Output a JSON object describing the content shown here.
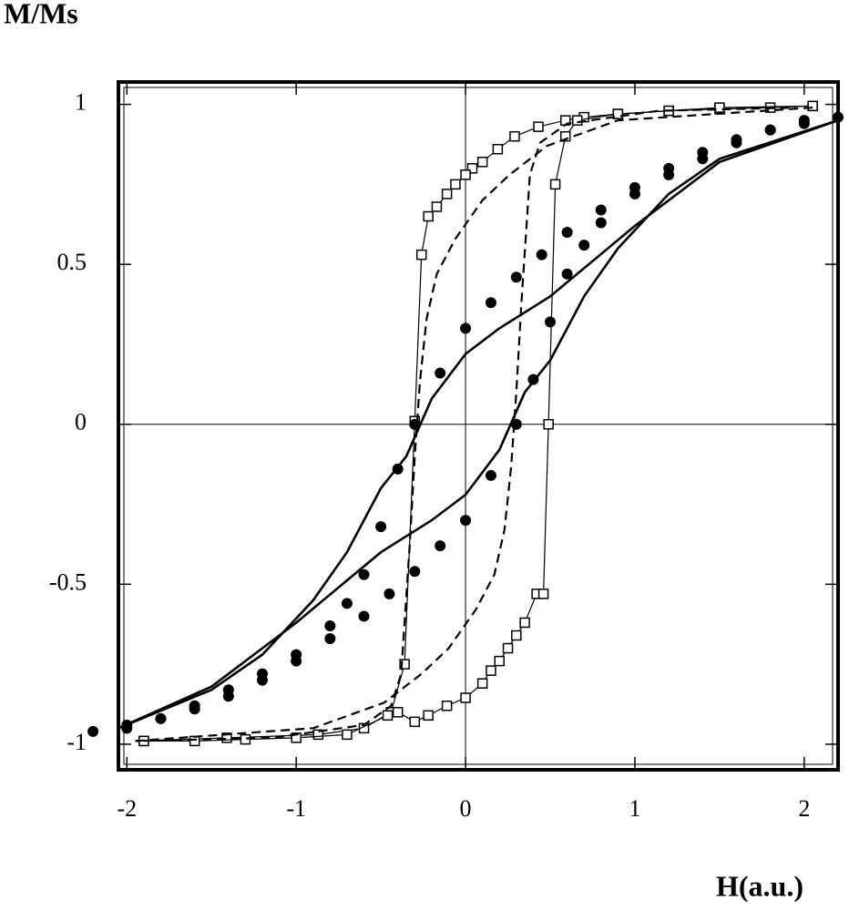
{
  "chart_data": {
    "type": "line",
    "y_label": "M/Ms",
    "x_label": "H(a.u.)",
    "xlim": [
      -2.05,
      2.2
    ],
    "ylim": [
      -1.08,
      1.07
    ],
    "xticks": [
      -2,
      -1,
      0,
      1,
      2
    ],
    "yticks": [
      -1,
      -0.5,
      0,
      0.5,
      1
    ],
    "zero_lines": true,
    "series": [
      {
        "color": "#000000",
        "line": "solid",
        "line_width": 1.2,
        "marker": "square",
        "x": [
          2.05,
          1.8,
          1.5,
          1.2,
          0.9,
          0.7,
          0.59,
          0.43,
          0.29,
          0.19,
          0.1,
          0.04,
          0.0,
          -0.06,
          -0.11,
          -0.17,
          -0.22,
          -0.26,
          -0.3,
          -0.36,
          -0.44,
          -0.6,
          -0.87,
          -1.41,
          -1.9
        ],
        "values": [
          0.995,
          0.99,
          0.985,
          0.98,
          0.97,
          0.96,
          0.95,
          0.93,
          0.9,
          0.86,
          0.82,
          0.8,
          0.78,
          0.75,
          0.72,
          0.68,
          0.65,
          0.53,
          0.01,
          -0.75,
          -0.9,
          -0.95,
          -0.97,
          -0.98,
          -0.99
        ]
      },
      {
        "color": "#000000",
        "line": "solid",
        "line_width": 1.2,
        "marker": "square",
        "x": [
          -1.9,
          -1.6,
          -1.3,
          -1.0,
          -0.7,
          -0.46,
          -0.4,
          -0.3,
          -0.22,
          -0.11,
          0.0,
          0.1,
          0.15,
          0.2,
          0.25,
          0.3,
          0.35,
          0.42,
          0.46,
          0.49,
          0.53,
          0.59,
          0.66,
          0.9,
          1.2,
          1.5,
          2.05
        ],
        "values": [
          -0.99,
          -0.99,
          -0.985,
          -0.98,
          -0.97,
          -0.91,
          -0.9,
          -0.93,
          -0.91,
          -0.88,
          -0.855,
          -0.81,
          -0.77,
          -0.74,
          -0.7,
          -0.66,
          -0.62,
          -0.53,
          -0.53,
          0.0,
          0.75,
          0.9,
          0.95,
          0.97,
          0.98,
          0.99,
          0.995
        ]
      },
      {
        "color": "#000000",
        "line": "dashed",
        "line_width": 2.2,
        "x": [
          2.05,
          0.9,
          0.48,
          0.26,
          0.1,
          -0.06,
          -0.17,
          -0.23,
          -0.27,
          -0.3,
          -0.33,
          -0.38,
          -0.44,
          -0.6,
          -1.14,
          -1.95
        ],
        "values": [
          0.99,
          0.95,
          0.87,
          0.78,
          0.7,
          0.58,
          0.47,
          0.33,
          0.13,
          -0.1,
          -0.38,
          -0.78,
          -0.88,
          -0.94,
          -0.98,
          -0.99
        ]
      },
      {
        "color": "#000000",
        "line": "dashed",
        "line_width": 2.2,
        "x": [
          -1.95,
          -0.9,
          -0.48,
          -0.26,
          -0.1,
          0.06,
          0.17,
          0.23,
          0.27,
          0.3,
          0.33,
          0.38,
          0.44,
          0.6,
          1.14,
          1.95
        ],
        "values": [
          -0.99,
          -0.95,
          -0.87,
          -0.78,
          -0.7,
          -0.58,
          -0.47,
          -0.33,
          -0.13,
          0.1,
          0.38,
          0.78,
          0.88,
          0.94,
          0.98,
          0.99
        ]
      },
      {
        "color": "#000000",
        "line": "solid",
        "line_width": 2.6,
        "x": [
          2.2,
          1.5,
          1.0,
          0.5,
          0.2,
          0.0,
          -0.2,
          -0.35,
          -0.5,
          -0.7,
          -0.9,
          -1.2,
          -1.5,
          -2.05
        ],
        "values": [
          0.95,
          0.82,
          0.62,
          0.4,
          0.3,
          0.22,
          0.08,
          -0.1,
          -0.2,
          -0.4,
          -0.55,
          -0.72,
          -0.83,
          -0.95
        ]
      },
      {
        "color": "#000000",
        "line": "solid",
        "line_width": 2.6,
        "x": [
          -2.05,
          -1.5,
          -1.0,
          -0.5,
          -0.2,
          0.0,
          0.2,
          0.35,
          0.5,
          0.7,
          0.9,
          1.2,
          1.5,
          2.2
        ],
        "values": [
          -0.95,
          -0.82,
          -0.62,
          -0.4,
          -0.3,
          -0.22,
          -0.08,
          0.1,
          0.2,
          0.4,
          0.55,
          0.72,
          0.83,
          0.95
        ]
      },
      {
        "color": "#000000",
        "marker": "circle",
        "x": [
          2.2,
          2.0,
          1.8,
          1.6,
          1.4,
          1.2,
          1.0,
          0.8,
          0.6,
          0.45,
          0.3,
          0.15,
          0.0,
          -0.15,
          -0.3,
          -0.4,
          -0.5,
          -0.6,
          -0.7,
          -0.8,
          -1.0,
          -1.2,
          -1.4,
          -1.6,
          -1.8,
          -2.0
        ],
        "values": [
          0.96,
          0.94,
          0.92,
          0.89,
          0.85,
          0.8,
          0.74,
          0.67,
          0.6,
          0.53,
          0.46,
          0.38,
          0.3,
          0.16,
          0.0,
          -0.14,
          -0.32,
          -0.47,
          -0.56,
          -0.63,
          -0.72,
          -0.78,
          -0.83,
          -0.88,
          -0.92,
          -0.95
        ]
      },
      {
        "color": "#000000",
        "marker": "circle",
        "x": [
          -2.2,
          -2.0,
          -1.8,
          -1.6,
          -1.4,
          -1.2,
          -1.0,
          -0.8,
          -0.6,
          -0.45,
          -0.3,
          -0.15,
          0.0,
          0.15,
          0.3,
          0.4,
          0.5,
          0.6,
          0.7,
          0.8,
          1.0,
          1.2,
          1.4,
          1.6,
          1.8,
          2.0
        ],
        "values": [
          -0.96,
          -0.94,
          -0.92,
          -0.89,
          -0.85,
          -0.8,
          -0.74,
          -0.67,
          -0.6,
          -0.53,
          -0.46,
          -0.38,
          -0.3,
          -0.16,
          0.0,
          0.14,
          0.32,
          0.47,
          0.56,
          0.63,
          0.72,
          0.78,
          0.83,
          0.88,
          0.92,
          0.95
        ]
      }
    ]
  }
}
